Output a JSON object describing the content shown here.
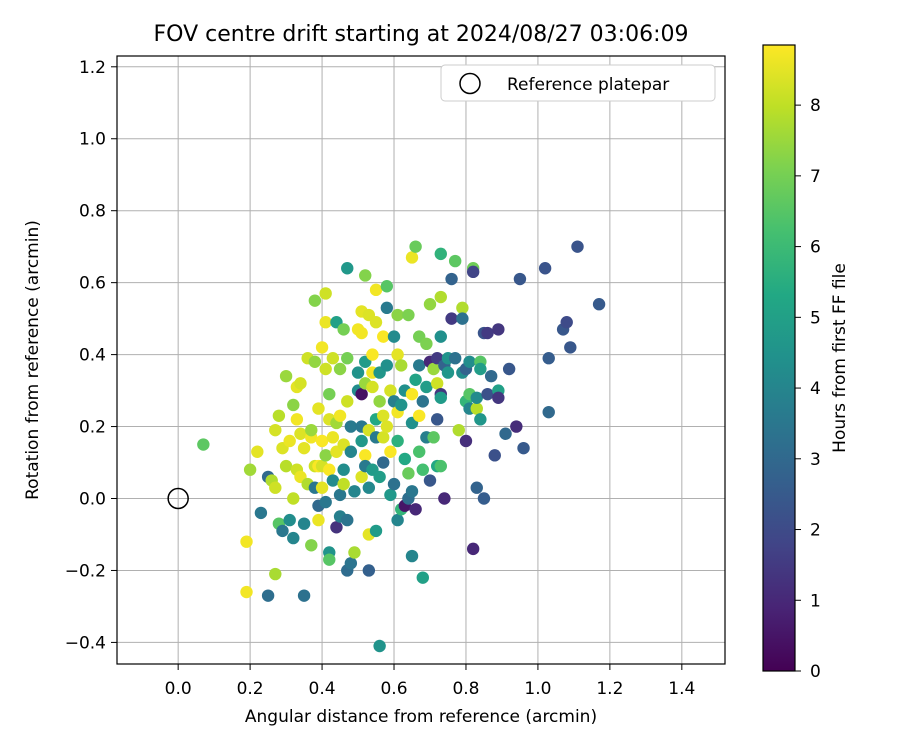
{
  "chart_data": {
    "type": "scatter",
    "title": "FOV centre drift starting at 2024/08/27 03:06:09",
    "xlabel": "Angular distance from reference (arcmin)",
    "ylabel": "Rotation from reference (arcmin)",
    "xlim": [
      -0.17,
      1.52
    ],
    "ylim": [
      -0.46,
      1.23
    ],
    "xticks": [
      0.0,
      0.2,
      0.4,
      0.6,
      0.8,
      1.0,
      1.2,
      1.4
    ],
    "xtick_labels": [
      "0.0",
      "0.2",
      "0.4",
      "0.6",
      "0.8",
      "1.0",
      "1.2",
      "1.4"
    ],
    "yticks": [
      -0.4,
      -0.2,
      0.0,
      0.2,
      0.4,
      0.6,
      0.8,
      1.0,
      1.2
    ],
    "ytick_labels": [
      "−0.4",
      "−0.2",
      "0.0",
      "0.2",
      "0.4",
      "0.6",
      "0.8",
      "1.0",
      "1.2"
    ],
    "grid": true,
    "legend": {
      "placement": "top-right",
      "entries": [
        "Reference platepar"
      ]
    },
    "reference_point": {
      "x": 0.0,
      "y": 0.0
    },
    "colorbar": {
      "label": "Hours from first FF file",
      "colormap": "viridis",
      "range": [
        0,
        8.85
      ],
      "ticks": [
        0,
        1,
        2,
        3,
        4,
        5,
        6,
        7,
        8
      ],
      "tick_labels": [
        "0",
        "1",
        "2",
        "3",
        "4",
        "5",
        "6",
        "7",
        "8"
      ]
    },
    "points": [
      {
        "x": 0.07,
        "y": 0.15,
        "h": 6.6
      },
      {
        "x": 0.19,
        "y": -0.26,
        "h": 8.7
      },
      {
        "x": 0.19,
        "y": -0.12,
        "h": 8.7
      },
      {
        "x": 0.2,
        "y": 0.08,
        "h": 7.6
      },
      {
        "x": 0.22,
        "y": 0.13,
        "h": 8.5
      },
      {
        "x": 0.23,
        "y": -0.04,
        "h": 3.5
      },
      {
        "x": 0.25,
        "y": -0.27,
        "h": 3.2
      },
      {
        "x": 0.25,
        "y": 0.06,
        "h": 3.0
      },
      {
        "x": 0.26,
        "y": 0.05,
        "h": 7.8
      },
      {
        "x": 0.27,
        "y": -0.21,
        "h": 7.7
      },
      {
        "x": 0.27,
        "y": 0.03,
        "h": 8.2
      },
      {
        "x": 0.27,
        "y": 0.19,
        "h": 8.3
      },
      {
        "x": 0.28,
        "y": -0.07,
        "h": 6.5
      },
      {
        "x": 0.28,
        "y": 0.23,
        "h": 7.9
      },
      {
        "x": 0.29,
        "y": -0.09,
        "h": 3.5
      },
      {
        "x": 0.29,
        "y": 0.14,
        "h": 8.4
      },
      {
        "x": 0.3,
        "y": 0.34,
        "h": 7.5
      },
      {
        "x": 0.3,
        "y": 0.09,
        "h": 7.9
      },
      {
        "x": 0.31,
        "y": -0.06,
        "h": 4.3
      },
      {
        "x": 0.31,
        "y": 0.16,
        "h": 8.6
      },
      {
        "x": 0.32,
        "y": 0.26,
        "h": 7.3
      },
      {
        "x": 0.32,
        "y": 0.0,
        "h": 8.0
      },
      {
        "x": 0.32,
        "y": -0.11,
        "h": 4.0
      },
      {
        "x": 0.33,
        "y": 0.31,
        "h": 8.5
      },
      {
        "x": 0.33,
        "y": 0.22,
        "h": 8.7
      },
      {
        "x": 0.33,
        "y": 0.08,
        "h": 8.2
      },
      {
        "x": 0.34,
        "y": 0.32,
        "h": 8.3
      },
      {
        "x": 0.34,
        "y": 0.06,
        "h": 8.6
      },
      {
        "x": 0.34,
        "y": 0.18,
        "h": 8.4
      },
      {
        "x": 0.35,
        "y": -0.27,
        "h": 3.3
      },
      {
        "x": 0.35,
        "y": -0.07,
        "h": 4.0
      },
      {
        "x": 0.35,
        "y": 0.14,
        "h": 8.5
      },
      {
        "x": 0.36,
        "y": 0.04,
        "h": 7.8
      },
      {
        "x": 0.36,
        "y": 0.39,
        "h": 8.2
      },
      {
        "x": 0.37,
        "y": -0.13,
        "h": 7.2
      },
      {
        "x": 0.37,
        "y": 0.17,
        "h": 8.7
      },
      {
        "x": 0.37,
        "y": 0.19,
        "h": 7.5
      },
      {
        "x": 0.38,
        "y": 0.55,
        "h": 7.2
      },
      {
        "x": 0.38,
        "y": 0.03,
        "h": 3.5
      },
      {
        "x": 0.38,
        "y": 0.09,
        "h": 8.2
      },
      {
        "x": 0.38,
        "y": 0.38,
        "h": 7.4
      },
      {
        "x": 0.39,
        "y": -0.02,
        "h": 3.0
      },
      {
        "x": 0.39,
        "y": 0.25,
        "h": 8.5
      },
      {
        "x": 0.39,
        "y": 0.09,
        "h": 8.8
      },
      {
        "x": 0.39,
        "y": -0.06,
        "h": 8.6
      },
      {
        "x": 0.4,
        "y": 0.16,
        "h": 8.8
      },
      {
        "x": 0.4,
        "y": 0.42,
        "h": 8.7
      },
      {
        "x": 0.4,
        "y": 0.09,
        "h": 8.3
      },
      {
        "x": 0.4,
        "y": 0.03,
        "h": 8.5
      },
      {
        "x": 0.41,
        "y": 0.57,
        "h": 8.2
      },
      {
        "x": 0.41,
        "y": 0.36,
        "h": 8.2
      },
      {
        "x": 0.41,
        "y": 0.12,
        "h": 7.3
      },
      {
        "x": 0.41,
        "y": -0.01,
        "h": 3.5
      },
      {
        "x": 0.41,
        "y": 0.49,
        "h": 8.6
      },
      {
        "x": 0.42,
        "y": 0.22,
        "h": 8.4
      },
      {
        "x": 0.42,
        "y": 0.29,
        "h": 7.0
      },
      {
        "x": 0.42,
        "y": 0.08,
        "h": 8.8
      },
      {
        "x": 0.42,
        "y": -0.15,
        "h": 4.5
      },
      {
        "x": 0.42,
        "y": -0.17,
        "h": 6.5
      },
      {
        "x": 0.43,
        "y": 0.39,
        "h": 8.2
      },
      {
        "x": 0.43,
        "y": 0.17,
        "h": 8.6
      },
      {
        "x": 0.43,
        "y": 0.05,
        "h": 4.2
      },
      {
        "x": 0.44,
        "y": 0.49,
        "h": 5.0
      },
      {
        "x": 0.44,
        "y": -0.08,
        "h": 1.3
      },
      {
        "x": 0.44,
        "y": 0.21,
        "h": 7.6
      },
      {
        "x": 0.44,
        "y": 0.13,
        "h": 8.5
      },
      {
        "x": 0.45,
        "y": 0.23,
        "h": 8.7
      },
      {
        "x": 0.45,
        "y": 0.01,
        "h": 3.5
      },
      {
        "x": 0.45,
        "y": -0.05,
        "h": 3.8
      },
      {
        "x": 0.45,
        "y": 0.36,
        "h": 7.3
      },
      {
        "x": 0.46,
        "y": 0.47,
        "h": 7.0
      },
      {
        "x": 0.46,
        "y": 0.08,
        "h": 4.3
      },
      {
        "x": 0.46,
        "y": 0.15,
        "h": 8.4
      },
      {
        "x": 0.46,
        "y": 0.04,
        "h": 8.0
      },
      {
        "x": 0.47,
        "y": 0.64,
        "h": 4.7
      },
      {
        "x": 0.47,
        "y": 0.27,
        "h": 8.2
      },
      {
        "x": 0.47,
        "y": -0.06,
        "h": 3.4
      },
      {
        "x": 0.47,
        "y": 0.39,
        "h": 7.0
      },
      {
        "x": 0.47,
        "y": -0.2,
        "h": 3.1
      },
      {
        "x": 0.48,
        "y": 0.2,
        "h": 3.6
      },
      {
        "x": 0.48,
        "y": 0.13,
        "h": 4.0
      },
      {
        "x": 0.48,
        "y": -0.18,
        "h": 3.4
      },
      {
        "x": 0.49,
        "y": 0.02,
        "h": 4.0
      },
      {
        "x": 0.49,
        "y": -0.15,
        "h": 7.7
      },
      {
        "x": 0.5,
        "y": 0.35,
        "h": 4.5
      },
      {
        "x": 0.5,
        "y": 0.3,
        "h": 4.3
      },
      {
        "x": 0.5,
        "y": 0.47,
        "h": 8.7
      },
      {
        "x": 0.51,
        "y": 0.52,
        "h": 8.5
      },
      {
        "x": 0.51,
        "y": 0.16,
        "h": 4.7
      },
      {
        "x": 0.51,
        "y": 0.2,
        "h": 3.5
      },
      {
        "x": 0.51,
        "y": 0.06,
        "h": 8.4
      },
      {
        "x": 0.51,
        "y": 0.29,
        "h": 0.4
      },
      {
        "x": 0.51,
        "y": 0.46,
        "h": 8.7
      },
      {
        "x": 0.52,
        "y": 0.62,
        "h": 7.2
      },
      {
        "x": 0.52,
        "y": 0.12,
        "h": 8.8
      },
      {
        "x": 0.52,
        "y": 0.32,
        "h": 7.5
      },
      {
        "x": 0.52,
        "y": 0.09,
        "h": 3.6
      },
      {
        "x": 0.52,
        "y": 0.38,
        "h": 4.8
      },
      {
        "x": 0.53,
        "y": -0.2,
        "h": 2.7
      },
      {
        "x": 0.53,
        "y": -0.1,
        "h": 8.5
      },
      {
        "x": 0.53,
        "y": 0.51,
        "h": 8.4
      },
      {
        "x": 0.53,
        "y": 0.19,
        "h": 8.3
      },
      {
        "x": 0.53,
        "y": 0.03,
        "h": 4.1
      },
      {
        "x": 0.54,
        "y": 0.31,
        "h": 8.3
      },
      {
        "x": 0.54,
        "y": 0.35,
        "h": 8.7
      },
      {
        "x": 0.54,
        "y": 0.08,
        "h": 4.8
      },
      {
        "x": 0.54,
        "y": 0.4,
        "h": 8.8
      },
      {
        "x": 0.55,
        "y": 0.58,
        "h": 8.7
      },
      {
        "x": 0.55,
        "y": 0.49,
        "h": 8.4
      },
      {
        "x": 0.55,
        "y": 0.22,
        "h": 5.3
      },
      {
        "x": 0.55,
        "y": -0.09,
        "h": 4.8
      },
      {
        "x": 0.55,
        "y": 0.17,
        "h": 3.6
      },
      {
        "x": 0.56,
        "y": -0.41,
        "h": 4.5
      },
      {
        "x": 0.56,
        "y": 0.35,
        "h": 4.6
      },
      {
        "x": 0.56,
        "y": 0.27,
        "h": 7.4
      },
      {
        "x": 0.56,
        "y": 0.06,
        "h": 4.9
      },
      {
        "x": 0.57,
        "y": 0.45,
        "h": 8.8
      },
      {
        "x": 0.57,
        "y": 0.23,
        "h": 8.4
      },
      {
        "x": 0.57,
        "y": 0.17,
        "h": 8.3
      },
      {
        "x": 0.57,
        "y": 0.1,
        "h": 3.0
      },
      {
        "x": 0.58,
        "y": 0.53,
        "h": 3.6
      },
      {
        "x": 0.58,
        "y": 0.59,
        "h": 6.5
      },
      {
        "x": 0.58,
        "y": 0.2,
        "h": 8.4
      },
      {
        "x": 0.58,
        "y": 0.37,
        "h": 4.4
      },
      {
        "x": 0.59,
        "y": 0.3,
        "h": 8.3
      },
      {
        "x": 0.59,
        "y": 0.01,
        "h": 4.7
      },
      {
        "x": 0.59,
        "y": 0.13,
        "h": 8.8
      },
      {
        "x": 0.6,
        "y": 0.27,
        "h": 3.8
      },
      {
        "x": 0.6,
        "y": 0.45,
        "h": 4.2
      },
      {
        "x": 0.6,
        "y": 0.04,
        "h": 3.3
      },
      {
        "x": 0.61,
        "y": 0.51,
        "h": 7.3
      },
      {
        "x": 0.61,
        "y": -0.06,
        "h": 4.0
      },
      {
        "x": 0.61,
        "y": 0.16,
        "h": 5.6
      },
      {
        "x": 0.61,
        "y": 0.24,
        "h": 8.7
      },
      {
        "x": 0.61,
        "y": 0.4,
        "h": 8.5
      },
      {
        "x": 0.62,
        "y": 0.37,
        "h": 7.7
      },
      {
        "x": 0.62,
        "y": 0.26,
        "h": 4.5
      },
      {
        "x": 0.62,
        "y": -0.03,
        "h": 5.8
      },
      {
        "x": 0.63,
        "y": 0.11,
        "h": 5.3
      },
      {
        "x": 0.63,
        "y": 0.3,
        "h": 4.4
      },
      {
        "x": 0.63,
        "y": -0.02,
        "h": 0.5
      },
      {
        "x": 0.64,
        "y": 0.51,
        "h": 7.1
      },
      {
        "x": 0.64,
        "y": 0.0,
        "h": 3.2
      },
      {
        "x": 0.64,
        "y": 0.07,
        "h": 6.8
      },
      {
        "x": 0.65,
        "y": 0.67,
        "h": 8.6
      },
      {
        "x": 0.65,
        "y": -0.16,
        "h": 4.0
      },
      {
        "x": 0.65,
        "y": 0.21,
        "h": 4.4
      },
      {
        "x": 0.65,
        "y": 0.29,
        "h": 8.8
      },
      {
        "x": 0.65,
        "y": 0.02,
        "h": 3.5
      },
      {
        "x": 0.66,
        "y": 0.7,
        "h": 6.8
      },
      {
        "x": 0.66,
        "y": 0.33,
        "h": 5.1
      },
      {
        "x": 0.66,
        "y": -0.03,
        "h": 1.0
      },
      {
        "x": 0.67,
        "y": 0.23,
        "h": 8.8
      },
      {
        "x": 0.67,
        "y": 0.13,
        "h": 6.3
      },
      {
        "x": 0.67,
        "y": 0.45,
        "h": 7.0
      },
      {
        "x": 0.67,
        "y": 0.37,
        "h": 3.6
      },
      {
        "x": 0.68,
        "y": -0.22,
        "h": 5.0
      },
      {
        "x": 0.68,
        "y": 0.08,
        "h": 6.2
      },
      {
        "x": 0.68,
        "y": 0.27,
        "h": 3.4
      },
      {
        "x": 0.69,
        "y": 0.17,
        "h": 3.8
      },
      {
        "x": 0.69,
        "y": 0.43,
        "h": 7.1
      },
      {
        "x": 0.69,
        "y": 0.31,
        "h": 4.9
      },
      {
        "x": 0.7,
        "y": 0.54,
        "h": 7.4
      },
      {
        "x": 0.7,
        "y": 0.38,
        "h": 1.0
      },
      {
        "x": 0.7,
        "y": 0.05,
        "h": 2.4
      },
      {
        "x": 0.71,
        "y": 0.17,
        "h": 6.6
      },
      {
        "x": 0.71,
        "y": 0.36,
        "h": 7.5
      },
      {
        "x": 0.72,
        "y": 0.32,
        "h": 8.2
      },
      {
        "x": 0.72,
        "y": 0.39,
        "h": 1.5
      },
      {
        "x": 0.72,
        "y": 0.22,
        "h": 2.4
      },
      {
        "x": 0.72,
        "y": 0.09,
        "h": 5.3
      },
      {
        "x": 0.73,
        "y": 0.56,
        "h": 7.8
      },
      {
        "x": 0.73,
        "y": 0.68,
        "h": 5.7
      },
      {
        "x": 0.73,
        "y": 0.29,
        "h": 1.4
      },
      {
        "x": 0.73,
        "y": 0.45,
        "h": 4.4
      },
      {
        "x": 0.73,
        "y": 0.28,
        "h": 4.8
      },
      {
        "x": 0.73,
        "y": 0.09,
        "h": 6.3
      },
      {
        "x": 0.74,
        "y": 0.0,
        "h": 1.0
      },
      {
        "x": 0.74,
        "y": 0.37,
        "h": 2.8
      },
      {
        "x": 0.75,
        "y": 0.35,
        "h": 4.6
      },
      {
        "x": 0.75,
        "y": 0.39,
        "h": 4.5
      },
      {
        "x": 0.76,
        "y": 0.5,
        "h": 1.5
      },
      {
        "x": 0.76,
        "y": 0.61,
        "h": 2.8
      },
      {
        "x": 0.77,
        "y": 0.39,
        "h": 3.3
      },
      {
        "x": 0.77,
        "y": 0.66,
        "h": 6.6
      },
      {
        "x": 0.78,
        "y": 0.19,
        "h": 7.8
      },
      {
        "x": 0.79,
        "y": 0.53,
        "h": 7.8
      },
      {
        "x": 0.79,
        "y": 0.5,
        "h": 3.3
      },
      {
        "x": 0.79,
        "y": 0.35,
        "h": 4.3
      },
      {
        "x": 0.8,
        "y": 0.36,
        "h": 2.8
      },
      {
        "x": 0.8,
        "y": 0.27,
        "h": 5.8
      },
      {
        "x": 0.8,
        "y": 0.16,
        "h": 1.2
      },
      {
        "x": 0.81,
        "y": 0.25,
        "h": 4.0
      },
      {
        "x": 0.81,
        "y": 0.29,
        "h": 6.5
      },
      {
        "x": 0.81,
        "y": 0.38,
        "h": 4.3
      },
      {
        "x": 0.82,
        "y": 0.64,
        "h": 6.9
      },
      {
        "x": 0.82,
        "y": 0.63,
        "h": 1.8
      },
      {
        "x": 0.82,
        "y": -0.14,
        "h": 1.0
      },
      {
        "x": 0.83,
        "y": 0.03,
        "h": 2.8
      },
      {
        "x": 0.83,
        "y": 0.25,
        "h": 7.9
      },
      {
        "x": 0.83,
        "y": 0.28,
        "h": 4.2
      },
      {
        "x": 0.84,
        "y": 0.38,
        "h": 6.5
      },
      {
        "x": 0.84,
        "y": 0.36,
        "h": 4.9
      },
      {
        "x": 0.84,
        "y": 0.22,
        "h": 4.6
      },
      {
        "x": 0.85,
        "y": 0.46,
        "h": 2.3
      },
      {
        "x": 0.85,
        "y": 0.0,
        "h": 2.6
      },
      {
        "x": 0.86,
        "y": 0.46,
        "h": 1.5
      },
      {
        "x": 0.86,
        "y": 0.29,
        "h": 2.2
      },
      {
        "x": 0.87,
        "y": 0.34,
        "h": 3.0
      },
      {
        "x": 0.88,
        "y": 0.12,
        "h": 2.2
      },
      {
        "x": 0.89,
        "y": 0.3,
        "h": 5.0
      },
      {
        "x": 0.89,
        "y": 0.47,
        "h": 1.4
      },
      {
        "x": 0.89,
        "y": 0.28,
        "h": 1.4
      },
      {
        "x": 0.91,
        "y": 0.18,
        "h": 3.0
      },
      {
        "x": 0.92,
        "y": 0.36,
        "h": 2.4
      },
      {
        "x": 0.94,
        "y": 0.2,
        "h": 1.1
      },
      {
        "x": 0.95,
        "y": 0.61,
        "h": 2.4
      },
      {
        "x": 0.96,
        "y": 0.14,
        "h": 2.5
      },
      {
        "x": 1.02,
        "y": 0.64,
        "h": 2.3
      },
      {
        "x": 1.03,
        "y": 0.24,
        "h": 3.0
      },
      {
        "x": 1.03,
        "y": 0.39,
        "h": 2.6
      },
      {
        "x": 1.07,
        "y": 0.47,
        "h": 2.4
      },
      {
        "x": 1.08,
        "y": 0.49,
        "h": 2.0
      },
      {
        "x": 1.09,
        "y": 0.42,
        "h": 2.4
      },
      {
        "x": 1.11,
        "y": 0.7,
        "h": 2.3
      },
      {
        "x": 1.17,
        "y": 0.54,
        "h": 2.5
      }
    ]
  }
}
